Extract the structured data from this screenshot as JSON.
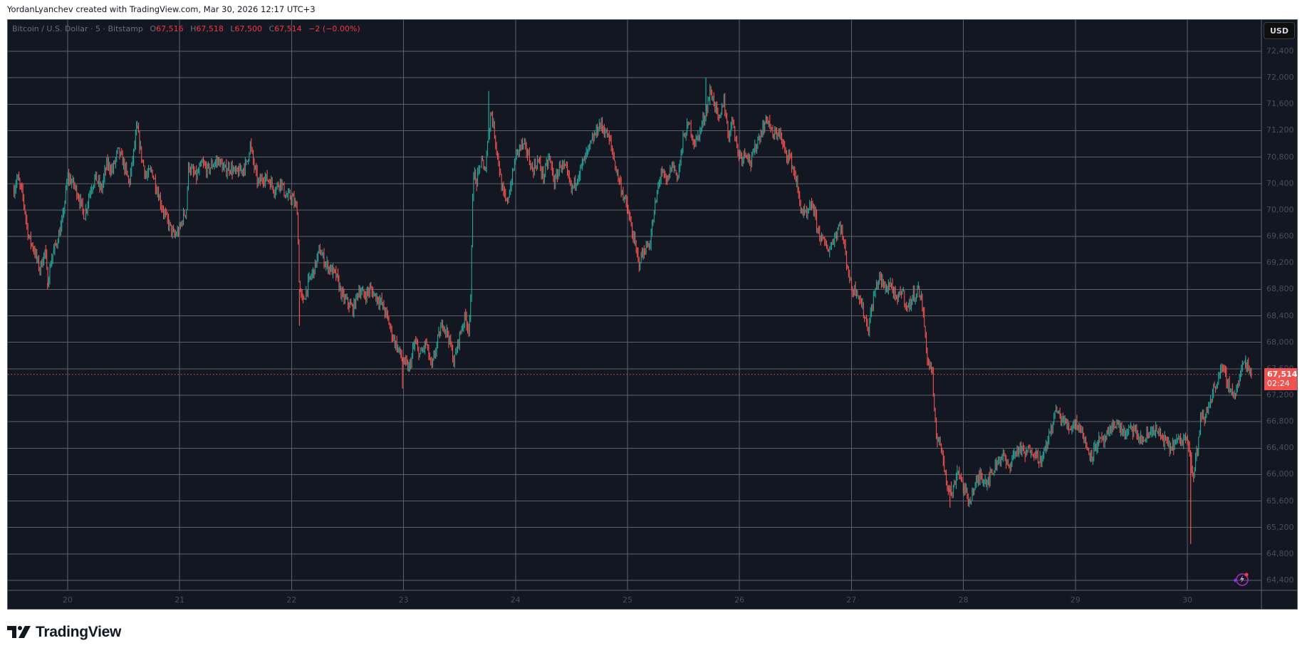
{
  "header": {
    "credit": "YordanLyanchev created with TradingView.com, Mar 30, 2026 12:17 UTC+3"
  },
  "legend": {
    "symbol": "Bitcoin / U.S. Dollar · 5 · Bitstamp",
    "o_label": "O",
    "o_value": "67,516",
    "h_label": "H",
    "h_value": "67,518",
    "l_label": "L",
    "l_value": "67,500",
    "c_label": "C",
    "c_value": "67,514",
    "change": "−2 (−0.00%)"
  },
  "price_axis": {
    "currency_button": "USD",
    "last_price": "67,514",
    "countdown": "02:24"
  },
  "footer": {
    "brand": "TradingView"
  },
  "colors": {
    "background": "#131722",
    "grid": "#5d606b",
    "up": "#26a69a",
    "down": "#f05350",
    "axis_text": "#4b4e59",
    "last_price": "#f05350"
  },
  "chart_data": {
    "type": "candlestick",
    "title": "Bitcoin / U.S. Dollar · 5 · Bitstamp",
    "xlabel": "",
    "ylabel": "USD",
    "interval": "5m",
    "ylim": [
      64300,
      72600
    ],
    "y_ticks": [
      72400,
      72000,
      71600,
      71200,
      70800,
      70400,
      70000,
      69600,
      69200,
      68800,
      68400,
      68000,
      67600,
      67200,
      66800,
      66400,
      66000,
      65600,
      65200,
      64800,
      64400
    ],
    "y_tick_labels": [
      "72,400",
      "72,000",
      "71,600",
      "71,200",
      "70,800",
      "70,400",
      "70,000",
      "69,600",
      "69,200",
      "68,800",
      "68,400",
      "68,000",
      "67,600",
      "67,200",
      "66,800",
      "66,400",
      "66,000",
      "65,600",
      "65,200",
      "64,800",
      "64,400"
    ],
    "x_ticks": [
      "20",
      "21",
      "22",
      "23",
      "24",
      "25",
      "26",
      "27",
      "28",
      "29",
      "30"
    ],
    "x_range_days": [
      19.52,
      30.62
    ],
    "grid": true,
    "last_price": 67514,
    "ohlc_last": {
      "open": 67516,
      "high": 67518,
      "low": 67500,
      "close": 67514,
      "change": -2,
      "change_pct": -0.0
    },
    "price_path": [
      [
        19.52,
        70300
      ],
      [
        19.55,
        70500
      ],
      [
        19.6,
        70200
      ],
      [
        19.65,
        69600
      ],
      [
        19.7,
        69400
      ],
      [
        19.75,
        69100
      ],
      [
        19.8,
        69400
      ],
      [
        19.82,
        68900
      ],
      [
        19.86,
        69300
      ],
      [
        19.9,
        69500
      ],
      [
        19.95,
        69800
      ],
      [
        20.0,
        70500
      ],
      [
        20.05,
        70400
      ],
      [
        20.1,
        70200
      ],
      [
        20.15,
        69900
      ],
      [
        20.2,
        70300
      ],
      [
        20.25,
        70500
      ],
      [
        20.3,
        70300
      ],
      [
        20.35,
        70700
      ],
      [
        20.4,
        70600
      ],
      [
        20.45,
        70900
      ],
      [
        20.5,
        70700
      ],
      [
        20.55,
        70400
      ],
      [
        20.62,
        71250
      ],
      [
        20.66,
        70800
      ],
      [
        20.7,
        70500
      ],
      [
        20.75,
        70600
      ],
      [
        20.8,
        70300
      ],
      [
        20.85,
        70000
      ],
      [
        20.9,
        69800
      ],
      [
        20.95,
        69600
      ],
      [
        21.0,
        69700
      ],
      [
        21.03,
        69900
      ],
      [
        21.06,
        70000
      ],
      [
        21.08,
        70700
      ],
      [
        21.1,
        70600
      ],
      [
        21.15,
        70500
      ],
      [
        21.2,
        70700
      ],
      [
        21.25,
        70600
      ],
      [
        21.3,
        70700
      ],
      [
        21.35,
        70750
      ],
      [
        21.4,
        70600
      ],
      [
        21.45,
        70650
      ],
      [
        21.5,
        70550
      ],
      [
        21.55,
        70600
      ],
      [
        21.6,
        70700
      ],
      [
        21.63,
        71000
      ],
      [
        21.66,
        70700
      ],
      [
        21.7,
        70400
      ],
      [
        21.75,
        70500
      ],
      [
        21.8,
        70450
      ],
      [
        21.85,
        70300
      ],
      [
        21.9,
        70450
      ],
      [
        21.95,
        70200
      ],
      [
        22.0,
        70200
      ],
      [
        22.05,
        70000
      ],
      [
        22.07,
        68800
      ],
      [
        22.1,
        68600
      ],
      [
        22.15,
        68900
      ],
      [
        22.2,
        69100
      ],
      [
        22.25,
        69400
      ],
      [
        22.3,
        69200
      ],
      [
        22.35,
        69100
      ],
      [
        22.4,
        69000
      ],
      [
        22.45,
        68700
      ],
      [
        22.5,
        68600
      ],
      [
        22.55,
        68500
      ],
      [
        22.6,
        68800
      ],
      [
        22.65,
        68700
      ],
      [
        22.7,
        68800
      ],
      [
        22.75,
        68700
      ],
      [
        22.8,
        68600
      ],
      [
        22.85,
        68400
      ],
      [
        22.9,
        68100
      ],
      [
        22.95,
        67900
      ],
      [
        23.0,
        67700
      ],
      [
        23.05,
        67600
      ],
      [
        23.1,
        68000
      ],
      [
        23.15,
        67800
      ],
      [
        23.2,
        68000
      ],
      [
        23.25,
        67600
      ],
      [
        23.3,
        68000
      ],
      [
        23.35,
        68300
      ],
      [
        23.4,
        68100
      ],
      [
        23.45,
        67700
      ],
      [
        23.5,
        68100
      ],
      [
        23.55,
        68400
      ],
      [
        23.58,
        68200
      ],
      [
        23.6,
        68600
      ],
      [
        23.62,
        70600
      ],
      [
        23.65,
        70400
      ],
      [
        23.7,
        70800
      ],
      [
        23.72,
        70500
      ],
      [
        23.75,
        71000
      ],
      [
        23.78,
        71500
      ],
      [
        23.8,
        71300
      ],
      [
        23.85,
        70700
      ],
      [
        23.88,
        70300
      ],
      [
        23.92,
        70100
      ],
      [
        23.96,
        70400
      ],
      [
        24.0,
        70800
      ],
      [
        24.05,
        71000
      ],
      [
        24.1,
        70900
      ],
      [
        24.15,
        70600
      ],
      [
        24.2,
        70750
      ],
      [
        24.25,
        70500
      ],
      [
        24.3,
        70800
      ],
      [
        24.35,
        70400
      ],
      [
        24.4,
        70700
      ],
      [
        24.45,
        70600
      ],
      [
        24.5,
        70300
      ],
      [
        24.55,
        70500
      ],
      [
        24.6,
        70700
      ],
      [
        24.65,
        70900
      ],
      [
        24.7,
        71100
      ],
      [
        24.75,
        71300
      ],
      [
        24.8,
        71200
      ],
      [
        24.85,
        71000
      ],
      [
        24.9,
        70600
      ],
      [
        24.95,
        70300
      ],
      [
        25.0,
        70000
      ],
      [
        25.05,
        69600
      ],
      [
        25.1,
        69200
      ],
      [
        25.15,
        69400
      ],
      [
        25.2,
        69500
      ],
      [
        25.25,
        70100
      ],
      [
        25.3,
        70600
      ],
      [
        25.35,
        70400
      ],
      [
        25.4,
        70700
      ],
      [
        25.45,
        70500
      ],
      [
        25.5,
        71100
      ],
      [
        25.55,
        71300
      ],
      [
        25.6,
        71000
      ],
      [
        25.65,
        71200
      ],
      [
        25.7,
        71500
      ],
      [
        25.74,
        71800
      ],
      [
        25.78,
        71600
      ],
      [
        25.82,
        71300
      ],
      [
        25.86,
        71700
      ],
      [
        25.9,
        71100
      ],
      [
        25.94,
        71400
      ],
      [
        25.98,
        70900
      ],
      [
        26.02,
        70800
      ],
      [
        26.06,
        70900
      ],
      [
        26.1,
        70700
      ],
      [
        26.15,
        71000
      ],
      [
        26.2,
        71200
      ],
      [
        26.25,
        71400
      ],
      [
        26.3,
        71100
      ],
      [
        26.35,
        71200
      ],
      [
        26.4,
        70900
      ],
      [
        26.45,
        70800
      ],
      [
        26.5,
        70500
      ],
      [
        26.55,
        70000
      ],
      [
        26.6,
        69900
      ],
      [
        26.65,
        70100
      ],
      [
        26.7,
        69700
      ],
      [
        26.75,
        69500
      ],
      [
        26.8,
        69400
      ],
      [
        26.85,
        69600
      ],
      [
        26.9,
        69800
      ],
      [
        26.95,
        69300
      ],
      [
        27.0,
        68800
      ],
      [
        27.05,
        68800
      ],
      [
        27.1,
        68500
      ],
      [
        27.15,
        68200
      ],
      [
        27.2,
        68700
      ],
      [
        27.25,
        69000
      ],
      [
        27.3,
        68800
      ],
      [
        27.35,
        68900
      ],
      [
        27.4,
        68600
      ],
      [
        27.45,
        68800
      ],
      [
        27.5,
        68500
      ],
      [
        27.55,
        68700
      ],
      [
        27.6,
        68800
      ],
      [
        27.63,
        68600
      ],
      [
        27.66,
        68100
      ],
      [
        27.68,
        67700
      ],
      [
        27.72,
        67600
      ],
      [
        27.74,
        66900
      ],
      [
        27.76,
        66500
      ],
      [
        27.78,
        66600
      ],
      [
        27.8,
        66400
      ],
      [
        27.85,
        65900
      ],
      [
        27.9,
        65700
      ],
      [
        27.95,
        66100
      ],
      [
        28.0,
        65800
      ],
      [
        28.05,
        65600
      ],
      [
        28.1,
        65800
      ],
      [
        28.15,
        66000
      ],
      [
        28.2,
        65900
      ],
      [
        28.25,
        66000
      ],
      [
        28.3,
        66200
      ],
      [
        28.35,
        66300
      ],
      [
        28.4,
        66100
      ],
      [
        28.45,
        66300
      ],
      [
        28.5,
        66400
      ],
      [
        28.55,
        66300
      ],
      [
        28.6,
        66400
      ],
      [
        28.65,
        66300
      ],
      [
        28.7,
        66200
      ],
      [
        28.75,
        66500
      ],
      [
        28.8,
        66800
      ],
      [
        28.83,
        67000
      ],
      [
        28.85,
        66900
      ],
      [
        28.9,
        66800
      ],
      [
        28.95,
        66700
      ],
      [
        29.0,
        66800
      ],
      [
        29.05,
        66700
      ],
      [
        29.1,
        66400
      ],
      [
        29.15,
        66300
      ],
      [
        29.2,
        66500
      ],
      [
        29.25,
        66500
      ],
      [
        29.3,
        66600
      ],
      [
        29.35,
        66800
      ],
      [
        29.4,
        66700
      ],
      [
        29.45,
        66600
      ],
      [
        29.5,
        66700
      ],
      [
        29.55,
        66600
      ],
      [
        29.6,
        66500
      ],
      [
        29.65,
        66600
      ],
      [
        29.7,
        66700
      ],
      [
        29.75,
        66600
      ],
      [
        29.8,
        66500
      ],
      [
        29.85,
        66400
      ],
      [
        29.9,
        66500
      ],
      [
        29.95,
        66500
      ],
      [
        30.0,
        66600
      ],
      [
        30.03,
        66300
      ],
      [
        30.05,
        65900
      ],
      [
        30.07,
        66200
      ],
      [
        30.1,
        66500
      ],
      [
        30.12,
        66900
      ],
      [
        30.15,
        66800
      ],
      [
        30.18,
        67000
      ],
      [
        30.22,
        67200
      ],
      [
        30.26,
        67400
      ],
      [
        30.3,
        67600
      ],
      [
        30.34,
        67500
      ],
      [
        30.38,
        67300
      ],
      [
        30.42,
        67200
      ],
      [
        30.46,
        67400
      ],
      [
        30.5,
        67700
      ],
      [
        30.54,
        67650
      ],
      [
        30.58,
        67514
      ]
    ],
    "notable_extremes": [
      {
        "day": 19.82,
        "low": 68800
      },
      {
        "day": 20.62,
        "high": 71350
      },
      {
        "day": 22.07,
        "low": 68250
      },
      {
        "day": 22.99,
        "low": 67300
      },
      {
        "day": 23.76,
        "high": 71800
      },
      {
        "day": 25.7,
        "high": 72000
      },
      {
        "day": 27.88,
        "low": 65500
      },
      {
        "day": 30.03,
        "low": 64950
      },
      {
        "day": 30.52,
        "high": 67800
      }
    ]
  }
}
